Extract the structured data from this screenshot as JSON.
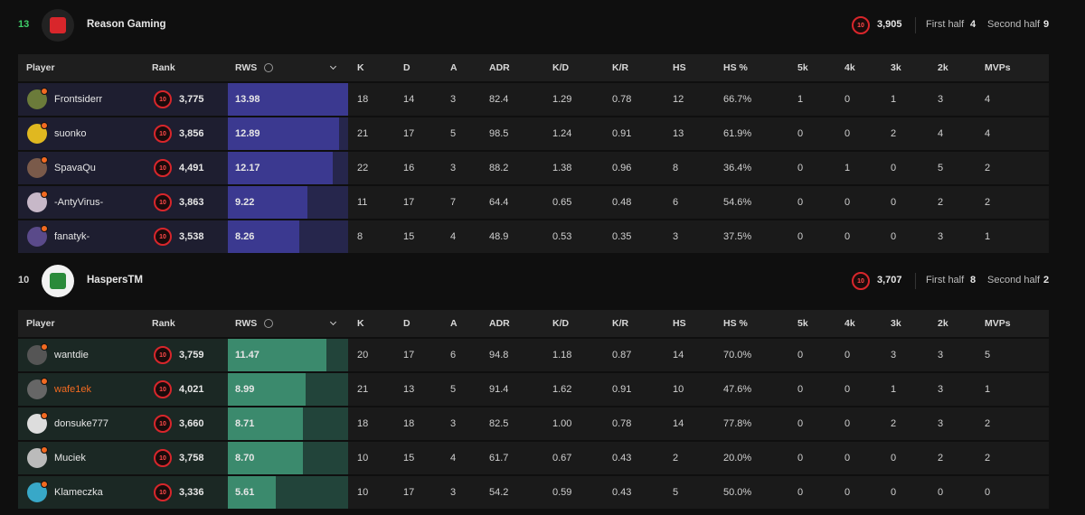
{
  "columns": [
    "Player",
    "Rank",
    "RWS",
    "K",
    "D",
    "A",
    "ADR",
    "K/D",
    "K/R",
    "HS",
    "HS %",
    "5k",
    "4k",
    "3k",
    "2k",
    "MVPs"
  ],
  "teams": [
    {
      "score": "13",
      "name": "Reason Gaming",
      "level": "10",
      "elo": "3,905",
      "first_half_label": "First half",
      "first_half": "4",
      "second_half_label": "Second half",
      "second_half": "9",
      "players": [
        {
          "name": "Frontsiderr",
          "level": "10",
          "rank": "3,775",
          "rws": "13.98",
          "stats": [
            "18",
            "14",
            "3",
            "82.4",
            "1.29",
            "0.78",
            "12",
            "66.7%",
            "1",
            "0",
            "1",
            "3",
            "4"
          ]
        },
        {
          "name": "suonko",
          "level": "10",
          "rank": "3,856",
          "rws": "12.89",
          "stats": [
            "21",
            "17",
            "5",
            "98.5",
            "1.24",
            "0.91",
            "13",
            "61.9%",
            "0",
            "0",
            "2",
            "4",
            "4"
          ]
        },
        {
          "name": "SpavaQu",
          "level": "10",
          "rank": "4,491",
          "rws": "12.17",
          "stats": [
            "22",
            "16",
            "3",
            "88.2",
            "1.38",
            "0.96",
            "8",
            "36.4%",
            "0",
            "1",
            "0",
            "5",
            "2"
          ]
        },
        {
          "name": "-AntyVirus-",
          "level": "10",
          "rank": "3,863",
          "rws": "9.22",
          "stats": [
            "11",
            "17",
            "7",
            "64.4",
            "0.65",
            "0.48",
            "6",
            "54.6%",
            "0",
            "0",
            "0",
            "2",
            "2"
          ]
        },
        {
          "name": "fanatyk-",
          "level": "10",
          "rank": "3,538",
          "rws": "8.26",
          "stats": [
            "8",
            "15",
            "4",
            "48.9",
            "0.53",
            "0.35",
            "3",
            "37.5%",
            "0",
            "0",
            "0",
            "3",
            "1"
          ]
        }
      ]
    },
    {
      "score": "10",
      "name": "HaspersTM",
      "level": "10",
      "elo": "3,707",
      "first_half_label": "First half",
      "first_half": "8",
      "second_half_label": "Second half",
      "second_half": "2",
      "players": [
        {
          "name": "wantdie",
          "level": "10",
          "rank": "3,759",
          "rws": "11.47",
          "stats": [
            "20",
            "17",
            "6",
            "94.8",
            "1.18",
            "0.87",
            "14",
            "70.0%",
            "0",
            "0",
            "3",
            "3",
            "5"
          ]
        },
        {
          "name": "wafe1ek",
          "color": "#f26a21",
          "level": "10",
          "rank": "4,021",
          "rws": "8.99",
          "stats": [
            "21",
            "13",
            "5",
            "91.4",
            "1.62",
            "0.91",
            "10",
            "47.6%",
            "0",
            "0",
            "1",
            "3",
            "1"
          ]
        },
        {
          "name": "donsuke777",
          "level": "10",
          "rank": "3,660",
          "rws": "8.71",
          "stats": [
            "18",
            "18",
            "3",
            "82.5",
            "1.00",
            "0.78",
            "14",
            "77.8%",
            "0",
            "0",
            "2",
            "3",
            "2"
          ]
        },
        {
          "name": "Muciek",
          "level": "10",
          "rank": "3,758",
          "rws": "8.70",
          "stats": [
            "10",
            "15",
            "4",
            "61.7",
            "0.67",
            "0.43",
            "2",
            "20.0%",
            "0",
            "0",
            "0",
            "2",
            "2"
          ]
        },
        {
          "name": "Klameczka",
          "level": "10",
          "rank": "3,336",
          "rws": "5.61",
          "stats": [
            "10",
            "17",
            "3",
            "54.2",
            "0.59",
            "0.43",
            "5",
            "50.0%",
            "0",
            "0",
            "0",
            "0",
            "0"
          ]
        }
      ]
    }
  ]
}
